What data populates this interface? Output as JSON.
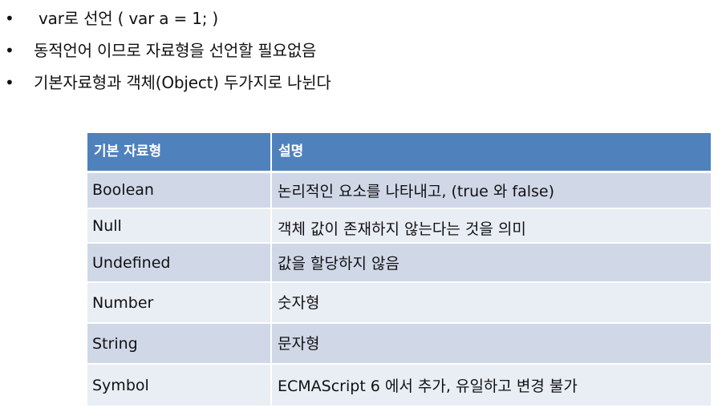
{
  "bullets": [
    {
      "symbol": "•",
      "text": "var로 선언 ( var a = 1; )"
    },
    {
      "symbol": "•",
      "text": "동적언어 이므로 자료형을 선언할 필요없음"
    },
    {
      "symbol": "•",
      "text": "기본자료형과 객체(Object) 두가지로 나뉜다"
    }
  ],
  "table": {
    "headers": [
      "기본 자료형",
      "설명"
    ],
    "rows": [
      {
        "type": "Boolean",
        "description": "논리적인 요소를 나타내고, (true 와 false)"
      },
      {
        "type": "Null",
        "description": "객체 값이 존재하지 않는다는 것을 의미"
      },
      {
        "type": "Undefined",
        "description": "값을 할당하지 않음"
      },
      {
        "type": "Number",
        "description": "숫자형"
      },
      {
        "type": "String",
        "description": "문자형"
      },
      {
        "type": "Symbol",
        "description": "ECMAScript 6 에서 추가, 유일하고 변경 불가"
      }
    ]
  },
  "colors": {
    "header_bg": "#4f81bd",
    "row_odd_bg": "#d0d8e8",
    "row_even_bg": "#e9edf4"
  }
}
